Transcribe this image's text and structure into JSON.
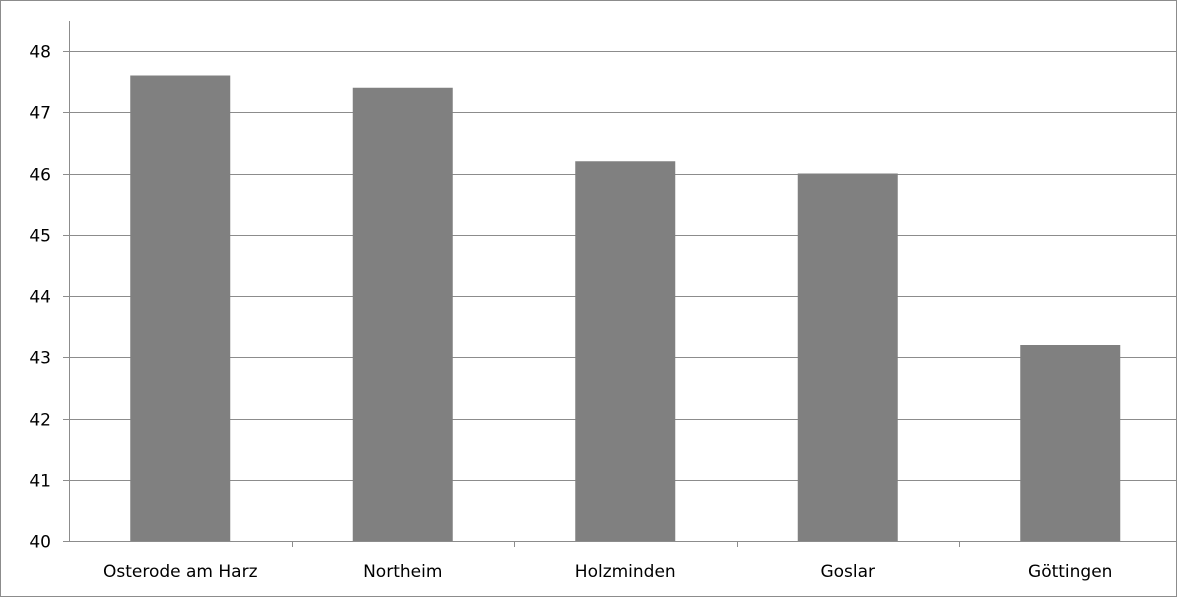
{
  "chart_data": {
    "type": "bar",
    "title": "",
    "xlabel": "",
    "ylabel": "",
    "categories": [
      "Osterode am Harz",
      "Northeim",
      "Holzminden",
      "Goslar",
      "Göttingen"
    ],
    "values": [
      47.6,
      47.4,
      46.2,
      46.0,
      43.2
    ],
    "ylim": [
      40,
      48
    ],
    "yticks": [
      "40",
      "41",
      "42",
      "43",
      "44",
      "45",
      "46",
      "47",
      "48"
    ],
    "grid": true,
    "legend": "none",
    "bar_color": "#808080",
    "grid_color": "#8c8c8c"
  }
}
